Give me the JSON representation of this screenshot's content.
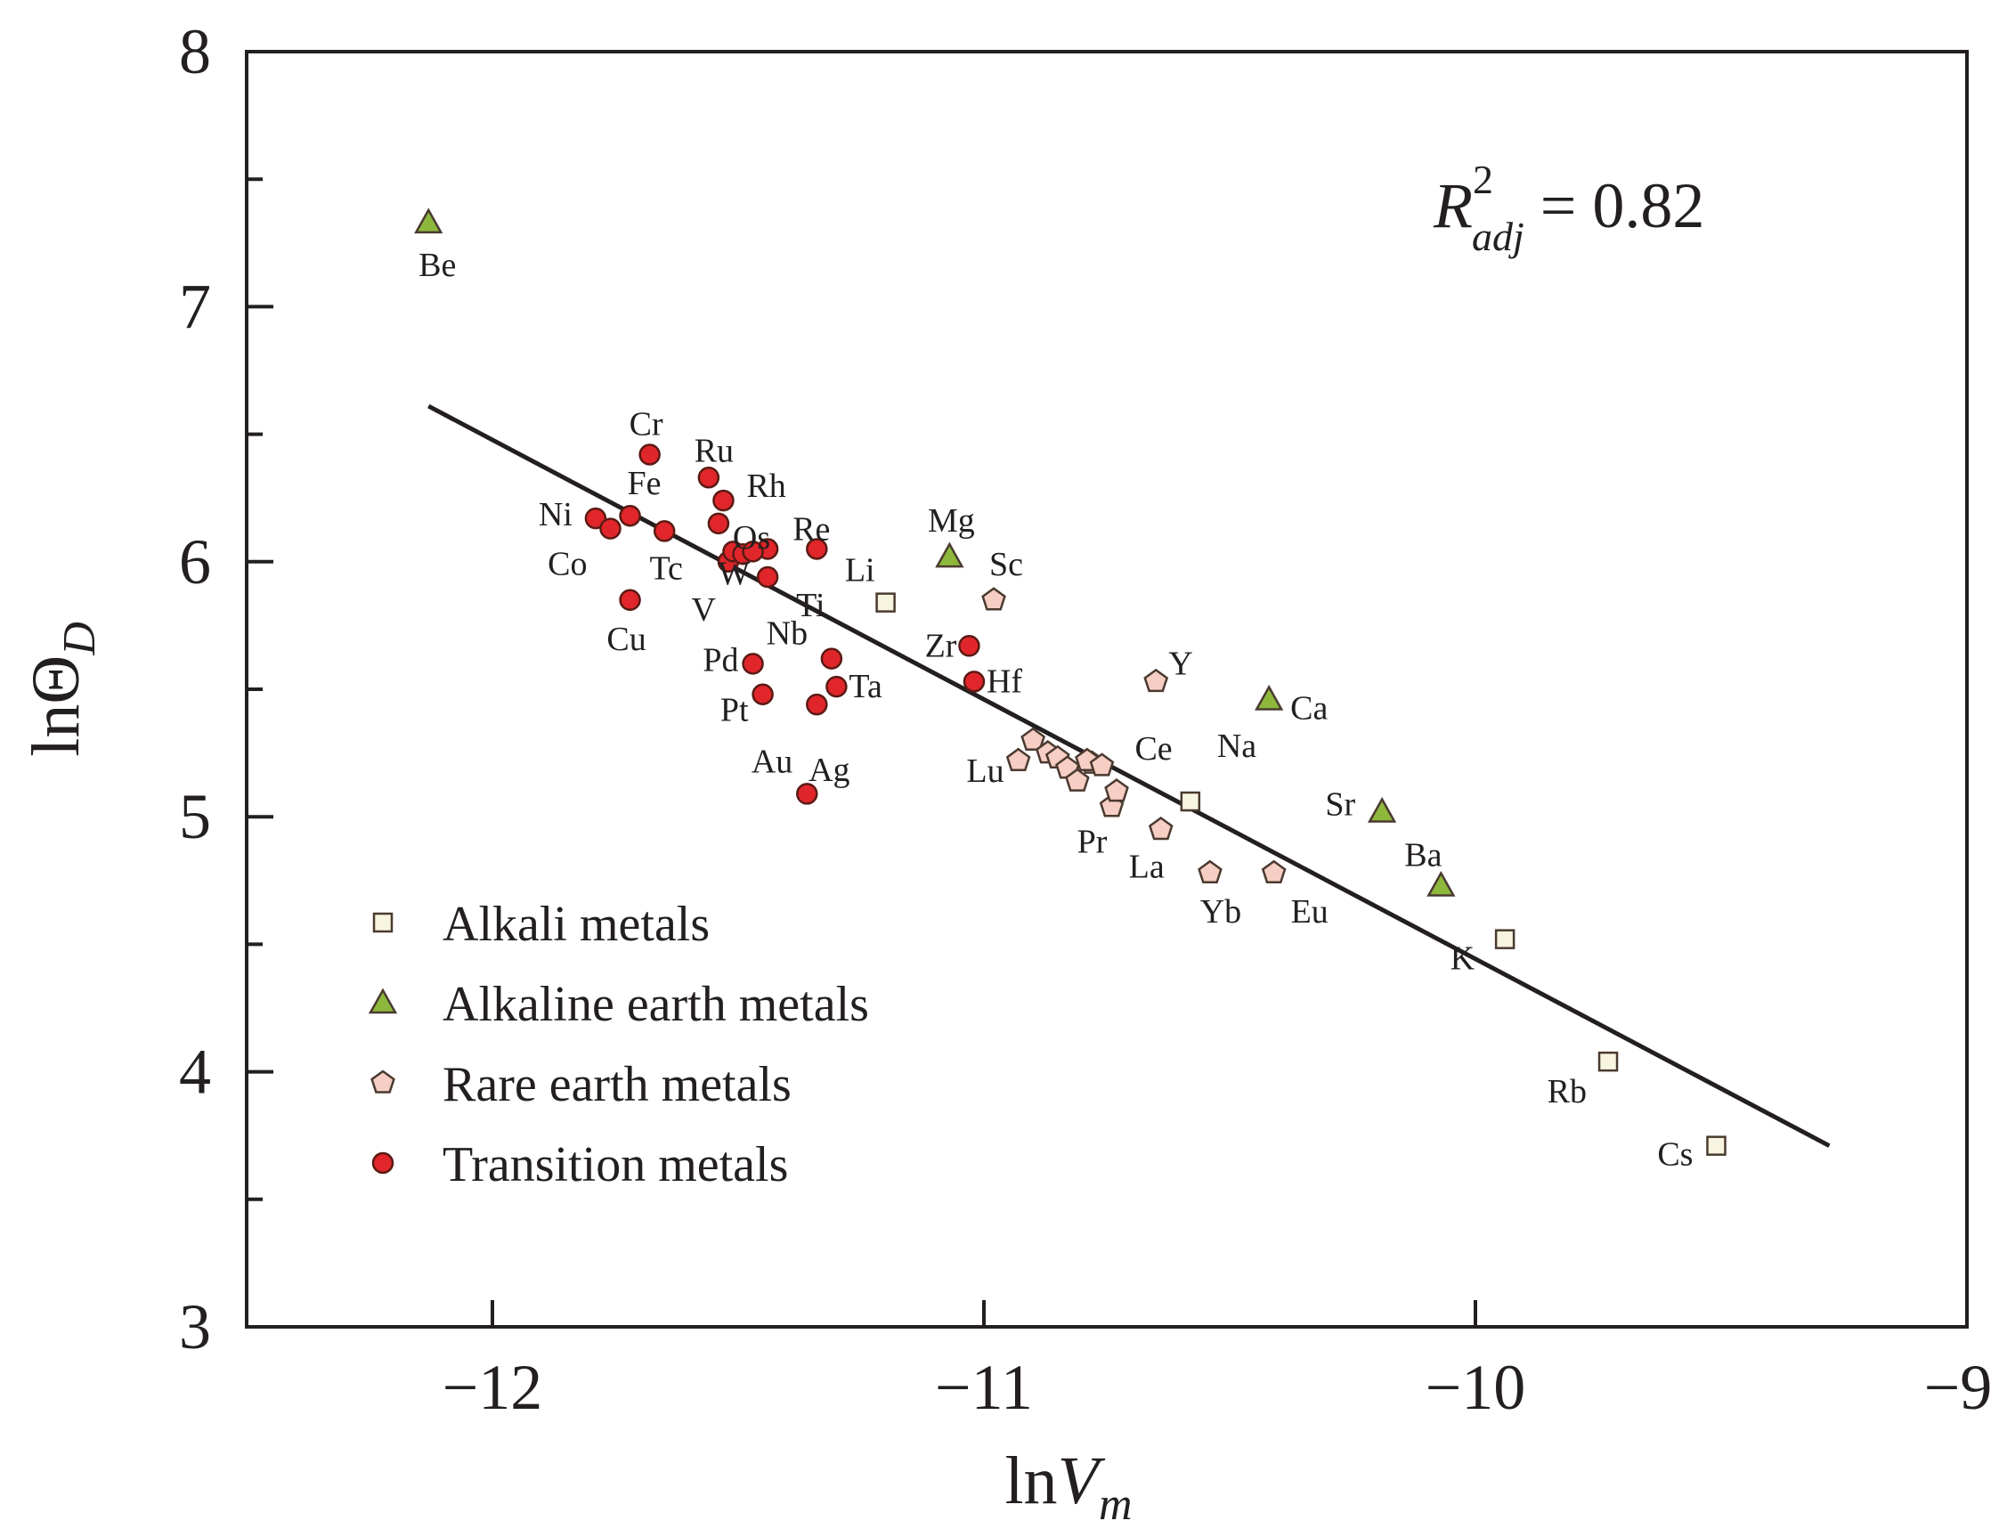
{
  "chart_data": {
    "type": "scatter",
    "title": "",
    "xlabel": {
      "main": "ln",
      "var": "V",
      "sub": "m"
    },
    "ylabel": {
      "main": "ln",
      "var": "Θ",
      "sub": "D"
    },
    "xlim": [
      -12.5,
      -9
    ],
    "ylim": [
      3,
      8
    ],
    "x_ticks": [
      -12,
      -11,
      -10,
      -9
    ],
    "x_tick_labels": [
      "−12",
      "−11",
      "−10",
      "−9"
    ],
    "y_ticks": [
      3,
      4,
      5,
      6,
      7,
      8
    ],
    "y_tick_labels": [
      "3",
      "4",
      "5",
      "6",
      "7",
      "8"
    ],
    "grid": false,
    "annotation": {
      "r": "R",
      "sup": "2",
      "sub": "adj",
      "eq": " = 0.82"
    },
    "fit_line": {
      "x": [
        -12.13,
        -9.28
      ],
      "y": [
        6.61,
        3.71
      ]
    },
    "legend_position": "bottom-left",
    "colors": {
      "axis": "#231f20",
      "alkali_fill": "#f7f5df",
      "alkaline_fill": "#8db83c",
      "rare_fill": "#f6cec4",
      "transition_fill": "#e0262a",
      "marker_stroke": "#4a3a30"
    },
    "series": [
      {
        "name": "Alkali metals",
        "marker": "square",
        "points": [
          {
            "x": -11.2,
            "y": 5.84,
            "label": "Li"
          },
          {
            "x": -10.58,
            "y": 5.06,
            "label": "Na"
          },
          {
            "x": -9.94,
            "y": 4.52,
            "label": "K"
          },
          {
            "x": -9.73,
            "y": 4.04,
            "label": "Rb"
          },
          {
            "x": -9.51,
            "y": 3.71,
            "label": "Cs"
          }
        ]
      },
      {
        "name": "Alkaline earth metals",
        "marker": "triangle",
        "points": [
          {
            "x": -12.13,
            "y": 7.33,
            "label": "Be"
          },
          {
            "x": -11.07,
            "y": 6.02,
            "label": "Mg"
          },
          {
            "x": -10.42,
            "y": 5.46,
            "label": "Ca"
          },
          {
            "x": -10.19,
            "y": 5.02,
            "label": "Sr"
          },
          {
            "x": -10.07,
            "y": 4.73,
            "label": "Ba"
          }
        ]
      },
      {
        "name": "Rare earth metals",
        "marker": "pentagon",
        "points": [
          {
            "x": -10.98,
            "y": 5.85,
            "label": "Sc"
          },
          {
            "x": -10.65,
            "y": 5.53,
            "label": "Y"
          },
          {
            "x": -10.78,
            "y": 5.21,
            "label": "Ce"
          },
          {
            "x": -10.93,
            "y": 5.22,
            "label": "Lu"
          },
          {
            "x": -10.74,
            "y": 5.04,
            "label": "Pr"
          },
          {
            "x": -10.64,
            "y": 4.95,
            "label": "La"
          },
          {
            "x": -10.54,
            "y": 4.78,
            "label": "Yb"
          },
          {
            "x": -10.41,
            "y": 4.78,
            "label": "Eu"
          },
          {
            "x": -10.9,
            "y": 5.3,
            "label": ""
          },
          {
            "x": -10.87,
            "y": 5.25,
            "label": ""
          },
          {
            "x": -10.85,
            "y": 5.23,
            "label": ""
          },
          {
            "x": -10.83,
            "y": 5.19,
            "label": ""
          },
          {
            "x": -10.81,
            "y": 5.14,
            "label": ""
          },
          {
            "x": -10.79,
            "y": 5.22,
            "label": ""
          },
          {
            "x": -10.76,
            "y": 5.2,
            "label": ""
          },
          {
            "x": -10.73,
            "y": 5.1,
            "label": ""
          }
        ]
      },
      {
        "name": "Transition metals",
        "marker": "circle",
        "points": [
          {
            "x": -11.68,
            "y": 6.42,
            "label": "Cr"
          },
          {
            "x": -11.56,
            "y": 6.33,
            "label": "Ru"
          },
          {
            "x": -11.53,
            "y": 6.24,
            "label": "Rh"
          },
          {
            "x": -11.72,
            "y": 6.18,
            "label": "Fe"
          },
          {
            "x": -11.79,
            "y": 6.17,
            "label": "Ni"
          },
          {
            "x": -11.76,
            "y": 6.13,
            "label": "Co"
          },
          {
            "x": -11.65,
            "y": 6.12,
            "label": "Tc"
          },
          {
            "x": -11.54,
            "y": 6.15,
            "label": "Os"
          },
          {
            "x": -11.34,
            "y": 6.05,
            "label": "Re"
          },
          {
            "x": -11.44,
            "y": 5.94,
            "label": "Ti"
          },
          {
            "x": -11.52,
            "y": 6.0,
            "label": "V"
          },
          {
            "x": -11.44,
            "y": 6.05,
            "label": "W"
          },
          {
            "x": -11.72,
            "y": 5.85,
            "label": "Cu"
          },
          {
            "x": -11.31,
            "y": 5.62,
            "label": "Nb"
          },
          {
            "x": -11.47,
            "y": 5.6,
            "label": "Pd"
          },
          {
            "x": -11.3,
            "y": 5.51,
            "label": "Ta"
          },
          {
            "x": -11.45,
            "y": 5.48,
            "label": "Pt"
          },
          {
            "x": -11.34,
            "y": 5.44,
            "label": "Ag"
          },
          {
            "x": -11.36,
            "y": 5.09,
            "label": "Au"
          },
          {
            "x": -11.03,
            "y": 5.67,
            "label": "Zr"
          },
          {
            "x": -11.02,
            "y": 5.53,
            "label": "Hf"
          },
          {
            "x": -11.51,
            "y": 6.04,
            "label": ""
          },
          {
            "x": -11.49,
            "y": 6.03,
            "label": ""
          },
          {
            "x": -11.47,
            "y": 6.04,
            "label": ""
          }
        ]
      }
    ]
  }
}
